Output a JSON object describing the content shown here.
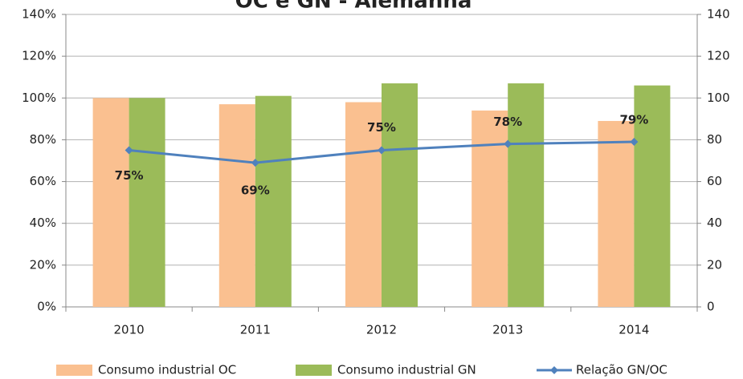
{
  "chart_data": {
    "type": "bar+line",
    "title": "OC e GN - Alemanha",
    "categories": [
      "2010",
      "2011",
      "2012",
      "2013",
      "2014"
    ],
    "series": [
      {
        "name": "Consumo industrial OC",
        "type": "bar",
        "color": "#fac090",
        "values": [
          100,
          97,
          98,
          94,
          89
        ]
      },
      {
        "name": "Consumo industrial GN",
        "type": "bar",
        "color": "#9bbb59",
        "values": [
          100,
          101,
          107,
          107,
          106
        ]
      },
      {
        "name": "Relação GN/OC",
        "type": "line",
        "axis": "y2",
        "color": "#4f81bd",
        "values": [
          75,
          69,
          75,
          78,
          79
        ],
        "value_labels": [
          "75%",
          "69%",
          "75%",
          "78%",
          "79%"
        ]
      }
    ],
    "ylim": [
      0,
      140
    ],
    "yticks": [
      {
        "value": 0,
        "label": "0%"
      },
      {
        "value": 20,
        "label": "20%"
      },
      {
        "value": 40,
        "label": "40%"
      },
      {
        "value": 60,
        "label": "60%"
      },
      {
        "value": 80,
        "label": "80%"
      },
      {
        "value": 100,
        "label": "100%"
      },
      {
        "value": 120,
        "label": "120%"
      },
      {
        "value": 140,
        "label": "140%"
      }
    ],
    "y2lim": [
      0,
      140
    ],
    "y2ticks": [
      0,
      20,
      40,
      60,
      80,
      100,
      120,
      140
    ],
    "grid": true,
    "legend": "bottom"
  }
}
